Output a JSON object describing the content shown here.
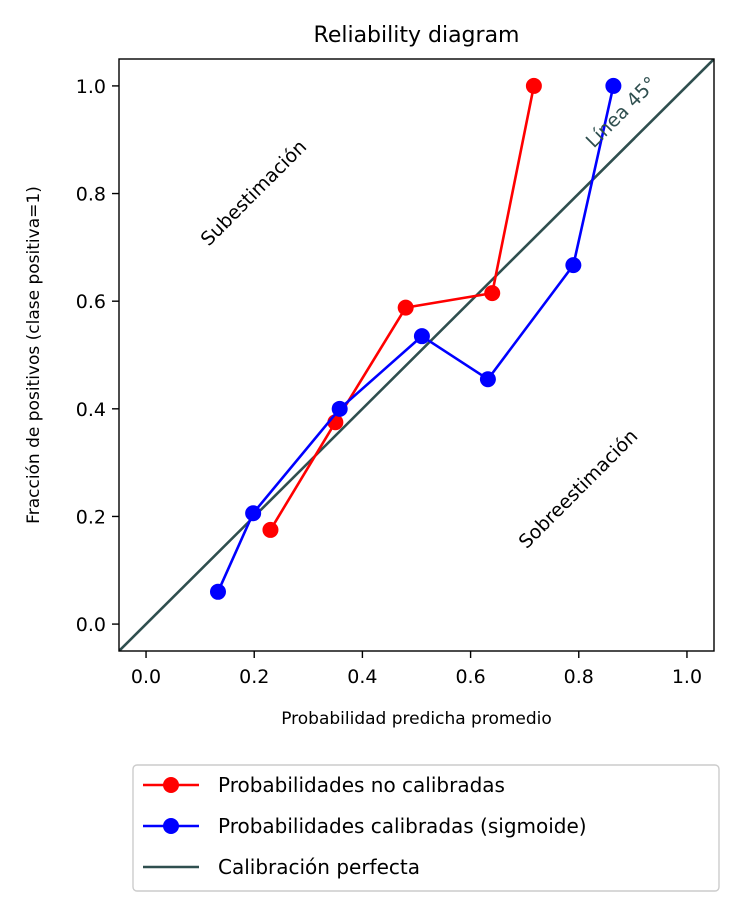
{
  "chart_data": {
    "type": "line",
    "title": "Reliability diagram",
    "xlabel": "Probabilidad predicha promedio",
    "ylabel": "Fracción de positivos (clase positiva=1)",
    "xlim": [
      -0.05,
      1.05
    ],
    "ylim": [
      -0.05,
      1.05
    ],
    "xticks": [
      "0.0",
      "0.2",
      "0.4",
      "0.6",
      "0.8",
      "1.0"
    ],
    "yticks": [
      "0.0",
      "0.2",
      "0.4",
      "0.6",
      "0.8",
      "1.0"
    ],
    "grid": false,
    "legend_position": "below-chart",
    "series": [
      {
        "name": "Probabilidades no calibradas",
        "color": "#ff0000",
        "marker": "circle",
        "x": [
          0.23,
          0.35,
          0.48,
          0.64,
          0.717
        ],
        "y": [
          0.175,
          0.375,
          0.588,
          0.615,
          1.0
        ]
      },
      {
        "name": "Probabilidades calibradas (sigmoide)",
        "color": "#0000ff",
        "marker": "circle",
        "x": [
          0.133,
          0.198,
          0.358,
          0.51,
          0.632,
          0.79,
          0.864
        ],
        "y": [
          0.06,
          0.206,
          0.4,
          0.535,
          0.455,
          0.667,
          1.0
        ]
      },
      {
        "name": "Calibración perfecta",
        "color": "#2f4f4f",
        "marker": "none",
        "x": [
          -0.05,
          1.05
        ],
        "y": [
          -0.05,
          1.05
        ]
      }
    ],
    "annotations": [
      {
        "text": "Subestimación",
        "x": 0.2,
        "y": 0.8,
        "color": "#000000",
        "rotation": 45
      },
      {
        "text": "Sobreestimación",
        "x": 0.8,
        "y": 0.25,
        "color": "#000000",
        "rotation": 45
      },
      {
        "text": "Línea 45°",
        "x": 0.88,
        "y": 0.95,
        "color": "#2f4f4f",
        "rotation": 45
      }
    ]
  }
}
